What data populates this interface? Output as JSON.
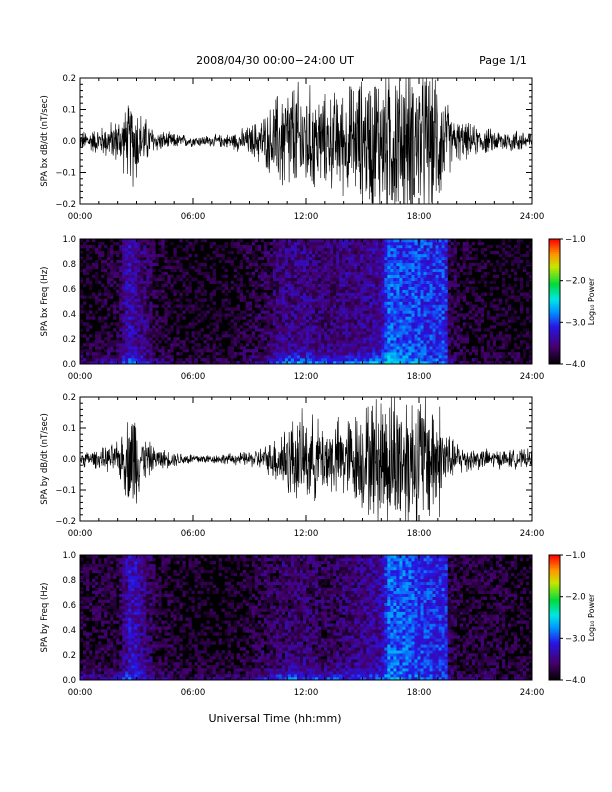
{
  "header": {
    "title": "2008/04/30   00:00−24:00 UT",
    "page_label": "Page 1/1"
  },
  "footer": {
    "xlabel": "Universal Time (hh:mm)"
  },
  "colors": {
    "trace": "#000000",
    "background": "#ffffff"
  },
  "chart_data": [
    {
      "type": "line",
      "ylabel": "SPA bx dB/dt (nT/sec)",
      "xlim": [
        0,
        24
      ],
      "ylim": [
        -0.2,
        0.2
      ],
      "x_tick_labels": [
        "00:00",
        "06:00",
        "12:00",
        "18:00",
        "24:00"
      ],
      "y_tick_labels": [
        "−0.2",
        "−0.1",
        "0.0",
        "0.1",
        "0.2"
      ],
      "envelope": {
        "hours": [
          0,
          1,
          2,
          2.6,
          2.9,
          3.2,
          4,
          5,
          6,
          7,
          8,
          9,
          10,
          10.6,
          11,
          12,
          13,
          14,
          15,
          15.9,
          16.4,
          17,
          18,
          19,
          19.4,
          19.8,
          21,
          22,
          23,
          24
        ],
        "amplitude": [
          0.025,
          0.035,
          0.06,
          0.1,
          0.13,
          0.08,
          0.03,
          0.02,
          0.015,
          0.015,
          0.02,
          0.04,
          0.08,
          0.14,
          0.16,
          0.15,
          0.12,
          0.14,
          0.17,
          0.2,
          0.22,
          0.22,
          0.21,
          0.19,
          0.12,
          0.06,
          0.04,
          0.03,
          0.03,
          0.03
        ]
      }
    },
    {
      "type": "heatmap",
      "ylabel": "SPA bx Freq (Hz)",
      "xlim": [
        0,
        24
      ],
      "ylim": [
        0,
        1
      ],
      "x_tick_labels": [
        "00:00",
        "06:00",
        "12:00",
        "18:00",
        "24:00"
      ],
      "y_tick_labels": [
        "0.0",
        "0.2",
        "0.4",
        "0.6",
        "0.8",
        "1.0"
      ],
      "colorbar": {
        "label": "Log₁₀ Power",
        "range": [
          -4,
          -1
        ],
        "tick_labels": [
          "−1.0",
          "−2.0",
          "−3.0",
          "−4.0"
        ]
      },
      "features": {
        "hours": [
          0,
          2,
          2.6,
          2.9,
          4.1,
          6,
          8,
          10,
          11,
          12,
          13,
          14,
          15,
          16,
          16.4,
          17,
          18,
          19,
          19.4,
          19.6,
          20,
          22,
          24
        ],
        "low_freq_power": [
          -3.4,
          -3.2,
          -2.8,
          -2.8,
          -3.4,
          -3.7,
          -3.6,
          -3.2,
          -2.6,
          -2.6,
          -2.8,
          -2.7,
          -2.6,
          -2.5,
          -2.2,
          -2.6,
          -2.7,
          -2.8,
          -2.9,
          -3.3,
          -3.5,
          -3.6,
          -3.7
        ],
        "broadband_power": [
          -3.9,
          -3.8,
          -3.3,
          -3.4,
          -3.8,
          -3.9,
          -3.9,
          -3.7,
          -3.5,
          -3.5,
          -3.6,
          -3.5,
          -3.5,
          -3.4,
          -2.9,
          -3.0,
          -3.0,
          -3.1,
          -3.0,
          -3.7,
          -3.8,
          -3.9,
          -3.9
        ]
      }
    },
    {
      "type": "line",
      "ylabel": "SPA by dB/dt (nT/sec)",
      "xlim": [
        0,
        24
      ],
      "ylim": [
        -0.2,
        0.2
      ],
      "x_tick_labels": [
        "00:00",
        "06:00",
        "12:00",
        "18:00",
        "24:00"
      ],
      "y_tick_labels": [
        "−0.2",
        "−0.1",
        "0.0",
        "0.1",
        "0.2"
      ],
      "envelope": {
        "hours": [
          0,
          1,
          2,
          2.6,
          2.9,
          3.2,
          4,
          5,
          6,
          7,
          8,
          9,
          10,
          10.6,
          11,
          12,
          13,
          14,
          15,
          15.9,
          16.4,
          17,
          18,
          19,
          19.4,
          19.8,
          21,
          22,
          23,
          24
        ],
        "amplitude": [
          0.02,
          0.025,
          0.045,
          0.12,
          0.16,
          0.07,
          0.03,
          0.02,
          0.015,
          0.012,
          0.015,
          0.02,
          0.04,
          0.08,
          0.11,
          0.12,
          0.1,
          0.11,
          0.14,
          0.18,
          0.2,
          0.2,
          0.19,
          0.17,
          0.1,
          0.05,
          0.03,
          0.025,
          0.025,
          0.025
        ]
      }
    },
    {
      "type": "heatmap",
      "ylabel": "SPA by Freq (Hz)",
      "xlim": [
        0,
        24
      ],
      "ylim": [
        0,
        1
      ],
      "x_tick_labels": [
        "00:00",
        "06:00",
        "12:00",
        "18:00",
        "24:00"
      ],
      "y_tick_labels": [
        "0.0",
        "0.2",
        "0.4",
        "0.6",
        "0.8",
        "1.0"
      ],
      "colorbar": {
        "label": "Log₁₀ Power",
        "range": [
          -4,
          -1
        ],
        "tick_labels": [
          "−1.0",
          "−2.0",
          "−3.0",
          "−4.0"
        ]
      },
      "features": {
        "hours": [
          0,
          2,
          2.6,
          2.9,
          4.1,
          6,
          8,
          10,
          11,
          12,
          13,
          14,
          15,
          16,
          16.4,
          17,
          18,
          19,
          19.4,
          19.6,
          20,
          22,
          24
        ],
        "low_freq_power": [
          -3.3,
          -3.2,
          -2.9,
          -2.9,
          -3.4,
          -3.6,
          -3.5,
          -3.1,
          -2.7,
          -2.8,
          -2.9,
          -2.9,
          -2.9,
          -2.8,
          -2.6,
          -2.8,
          -2.9,
          -3.0,
          -3.0,
          -3.4,
          -3.5,
          -3.6,
          -3.6
        ],
        "broadband_power": [
          -3.8,
          -3.8,
          -3.3,
          -3.3,
          -3.8,
          -3.9,
          -3.9,
          -3.7,
          -3.6,
          -3.6,
          -3.7,
          -3.6,
          -3.5,
          -3.4,
          -2.9,
          -2.9,
          -3.0,
          -3.1,
          -3.0,
          -3.7,
          -3.8,
          -3.8,
          -3.9
        ]
      }
    }
  ]
}
